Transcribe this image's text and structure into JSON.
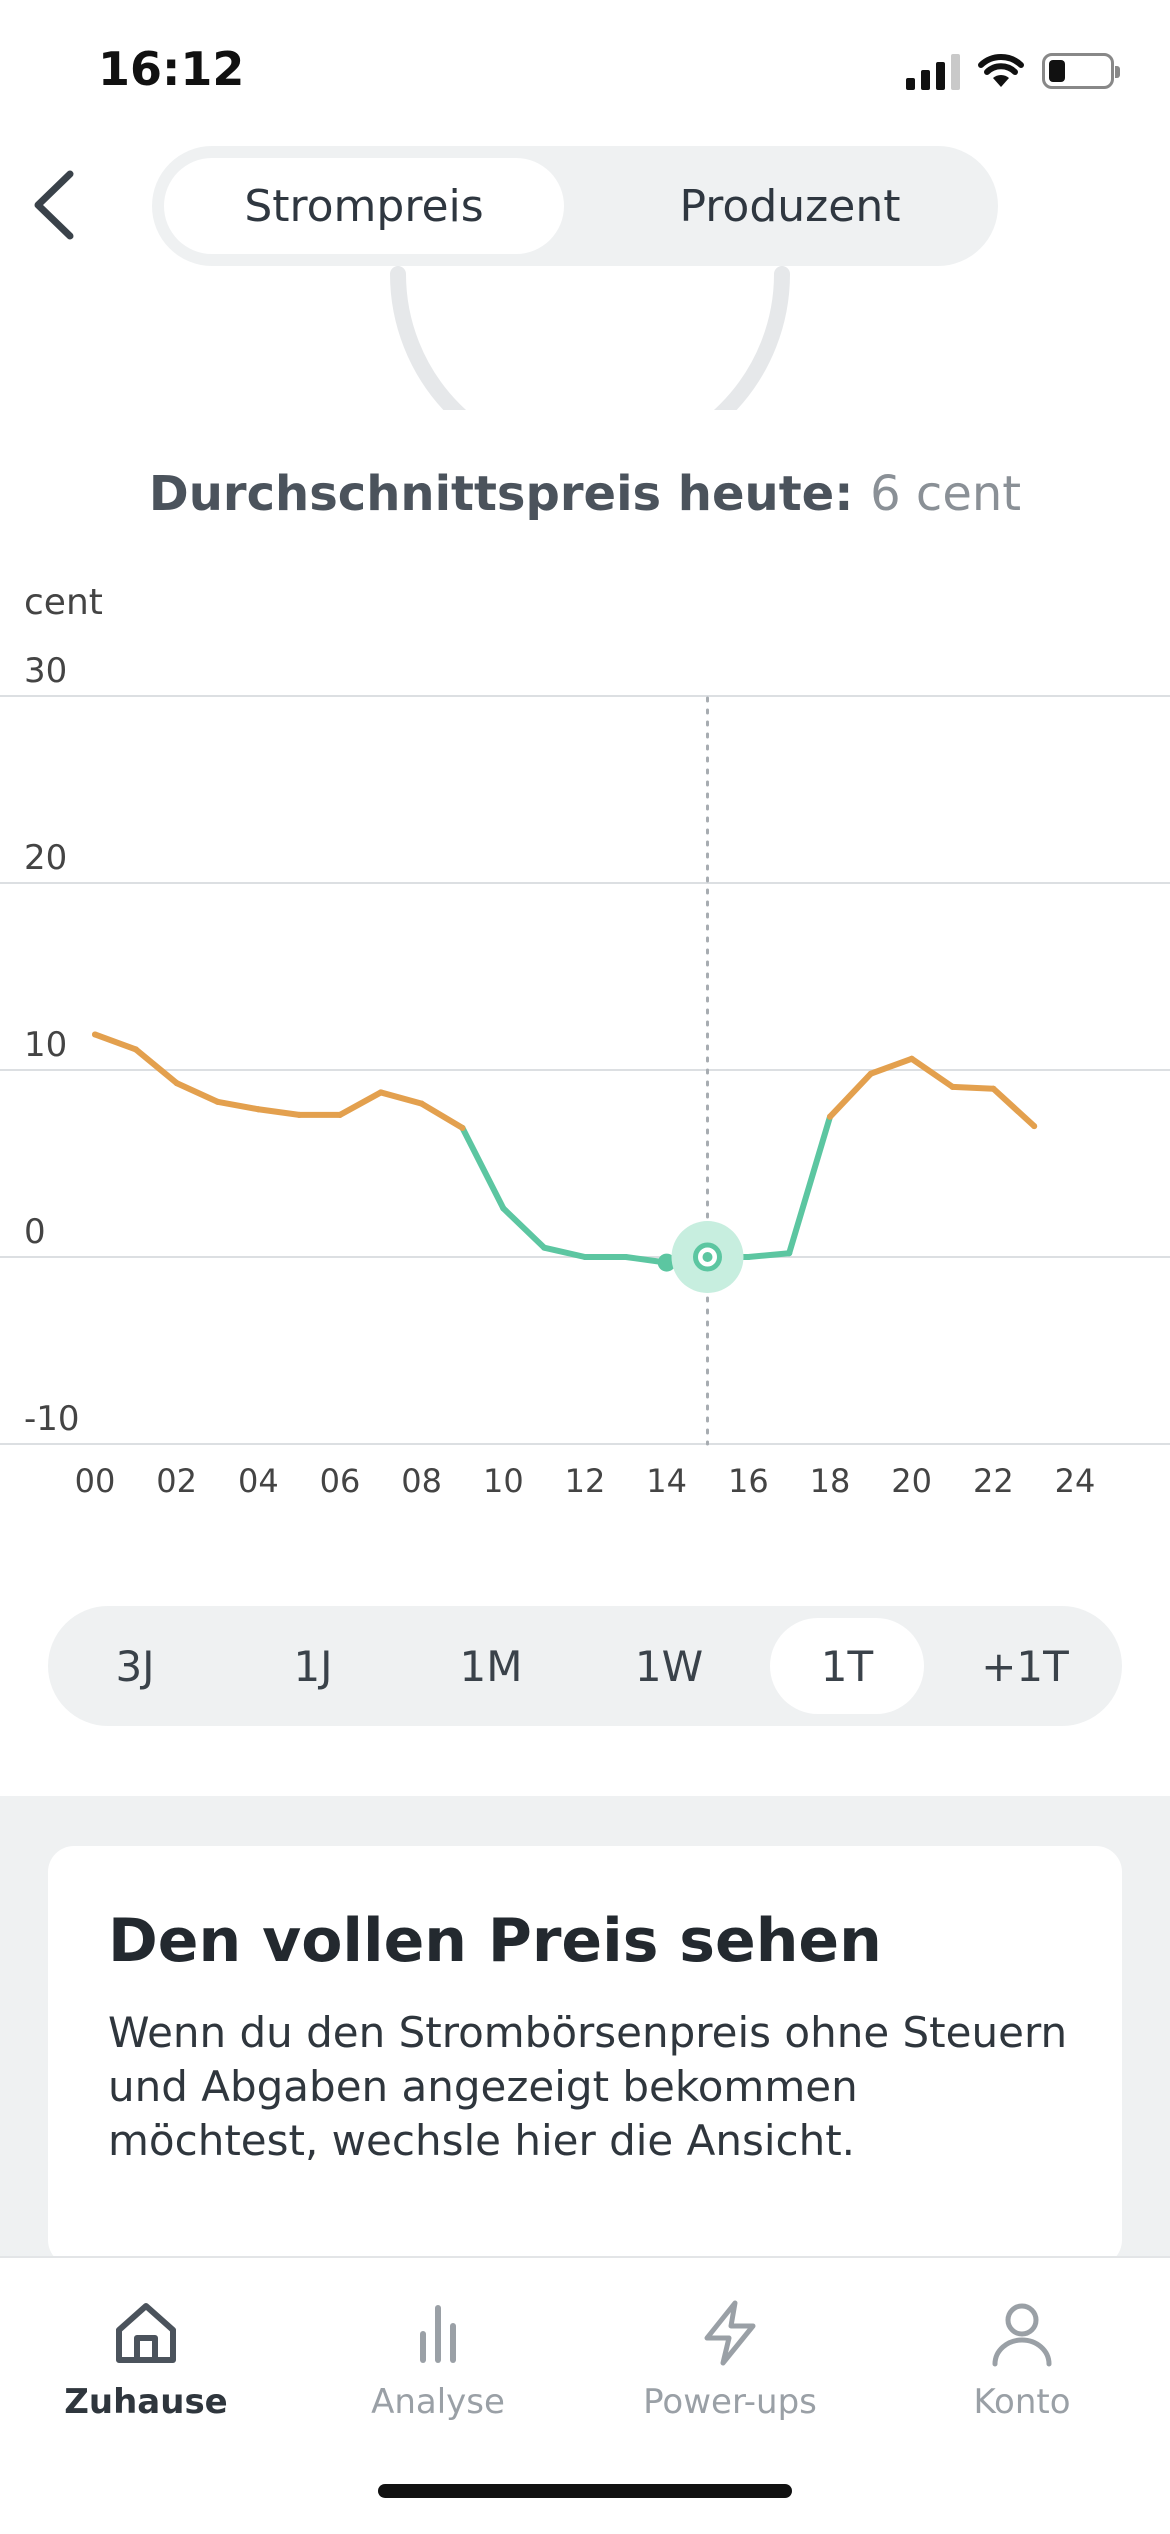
{
  "status_bar": {
    "time": "16:12"
  },
  "header": {
    "tabs": [
      {
        "label": "Strompreis",
        "active": true
      },
      {
        "label": "Produzent",
        "active": false
      }
    ]
  },
  "average": {
    "label": "Durchschnittspreis heute:",
    "value": "6 cent"
  },
  "chart_data": {
    "type": "line",
    "ylabel": "cent",
    "xlabel": "",
    "ylim": [
      -10,
      30
    ],
    "y_ticks": [
      30,
      20,
      10,
      0,
      -10
    ],
    "x_ticks": [
      "00",
      "02",
      "04",
      "06",
      "08",
      "10",
      "12",
      "14",
      "16",
      "18",
      "20",
      "22",
      "24"
    ],
    "xlim": [
      0,
      24
    ],
    "grid": true,
    "x": [
      0,
      1,
      2,
      3,
      4,
      5,
      6,
      7,
      8,
      9,
      10,
      11,
      12,
      13,
      14,
      15,
      16,
      17,
      18,
      19,
      20,
      21,
      22,
      23
    ],
    "values": [
      11.9,
      11.1,
      9.3,
      8.3,
      7.9,
      7.6,
      7.6,
      8.8,
      8.2,
      6.9,
      2.6,
      0.5,
      0.0,
      0.0,
      -0.3,
      0.0,
      0.0,
      0.2,
      7.5,
      9.8,
      10.6,
      9.1,
      9.0,
      7.0
    ],
    "colors": {
      "high": "#e3a04e",
      "low": "#5cc6a1"
    },
    "low_threshold": 6.5,
    "selected_x": 15
  },
  "range_selector": {
    "options": [
      {
        "label": "3J",
        "active": false
      },
      {
        "label": "1J",
        "active": false
      },
      {
        "label": "1M",
        "active": false
      },
      {
        "label": "1W",
        "active": false
      },
      {
        "label": "1T",
        "active": true
      },
      {
        "label": "+1T",
        "active": false
      }
    ]
  },
  "info_card": {
    "title": "Den vollen Preis sehen",
    "text": "Wenn du den Strombörsenpreis ohne Steuern und Abgaben angezeigt bekommen möchtest, wechsle hier die Ansicht."
  },
  "tab_bar": {
    "items": [
      {
        "label": "Zuhause",
        "icon": "home-icon",
        "active": true
      },
      {
        "label": "Analyse",
        "icon": "bar-chart-icon",
        "active": false
      },
      {
        "label": "Power-ups",
        "icon": "lightning-icon",
        "active": false
      },
      {
        "label": "Konto",
        "icon": "user-icon",
        "active": false
      }
    ]
  }
}
